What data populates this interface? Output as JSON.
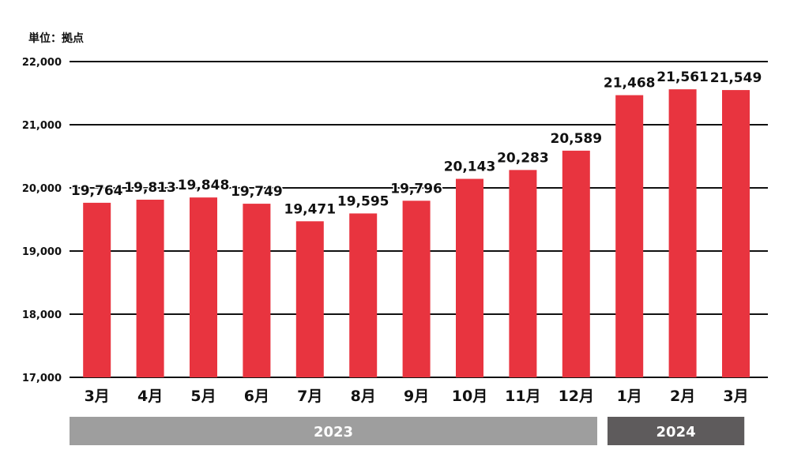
{
  "chart_data": {
    "type": "bar",
    "unit_label": "単位：拠点",
    "categories": [
      "3月",
      "4月",
      "5月",
      "6月",
      "7月",
      "8月",
      "9月",
      "10月",
      "11月",
      "12月",
      "1月",
      "2月",
      "3月"
    ],
    "values": [
      19764,
      19813,
      19848,
      19749,
      19471,
      19595,
      19796,
      20143,
      20283,
      20589,
      21468,
      21561,
      21549
    ],
    "data_labels": [
      "19,764",
      "19,813",
      "19,848",
      "19,749",
      "19,471",
      "19,595",
      "19,796",
      "20,143",
      "20,283",
      "20,589",
      "21,468",
      "21,561",
      "21,549"
    ],
    "y_ticks": [
      17000,
      18000,
      19000,
      20000,
      21000,
      22000
    ],
    "y_tick_labels": [
      "17,000",
      "18,000",
      "19,000",
      "20,000",
      "21,000",
      "22,000"
    ],
    "ylim": [
      17000,
      22000
    ],
    "grid": true,
    "years": [
      {
        "label": "2023",
        "start_index": 0,
        "end_index": 9,
        "color": "#9e9e9e"
      },
      {
        "label": "2024",
        "start_index": 10,
        "end_index": 12,
        "color": "#5e5b5c"
      }
    ],
    "bar_color": "#e8343f"
  }
}
